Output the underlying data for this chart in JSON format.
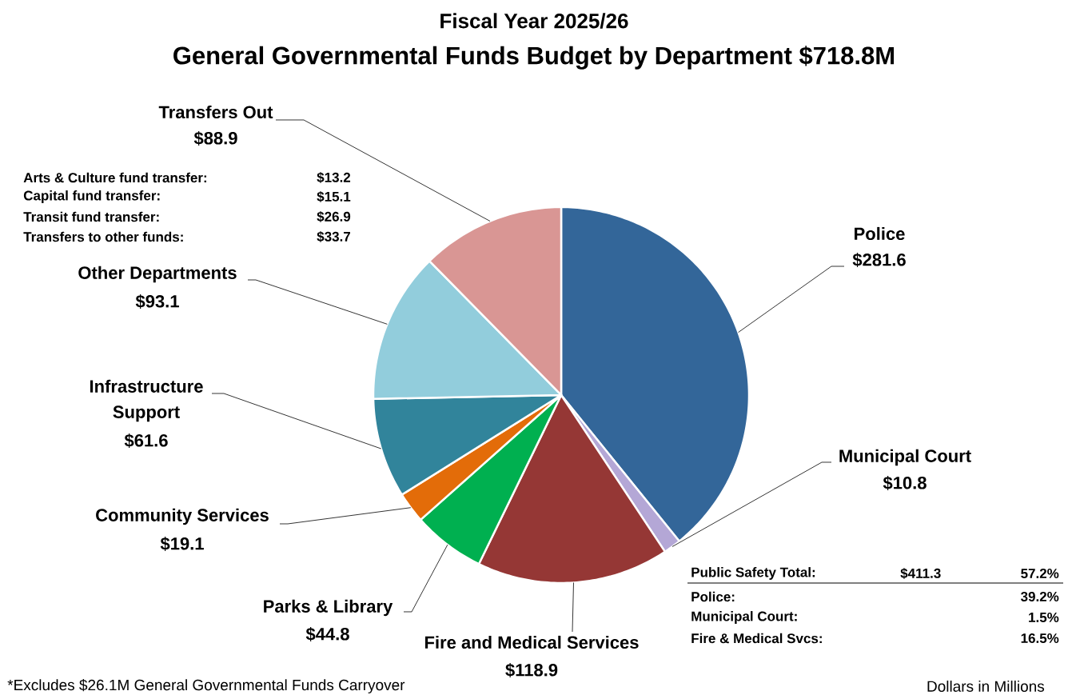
{
  "chart_data": {
    "type": "pie",
    "title": "Fiscal Year 2025/26",
    "subtitle": "General Governmental Funds Budget by Department $718.8M",
    "categories": [
      "Police",
      "Municipal Court",
      "Fire and Medical Services",
      "Parks & Library",
      "Community Services",
      "Infrastructure Support",
      "Other Departments",
      "Transfers Out"
    ],
    "values": [
      281.6,
      10.8,
      118.9,
      44.8,
      19.1,
      61.6,
      93.1,
      88.9
    ],
    "value_labels": [
      "$281.6",
      "$10.8",
      "$118.9",
      "$44.8",
      "$19.1",
      "$61.6",
      "$93.1",
      "$88.9"
    ],
    "colors": [
      "#336699",
      "#b4a7d6",
      "#953735",
      "#00b050",
      "#e36c09",
      "#31849b",
      "#92cddc",
      "#d99694"
    ],
    "annotations": [
      "Arts & Culture fund transfer:",
      "$13.2",
      "Capital fund transfer:",
      "$15.1",
      "Transit fund transfer:",
      "$26.9",
      "Transfers to other funds:",
      "$33.7",
      "Public Safety Total:",
      "$411.3",
      "57.2%",
      "Police:",
      "39.2%",
      "Municipal Court:",
      "1.5%",
      "Fire & Medical Svcs:",
      "16.5%",
      "*Excludes $26.1M General Governmental Funds Carryover",
      "Dollars in Millions"
    ]
  }
}
